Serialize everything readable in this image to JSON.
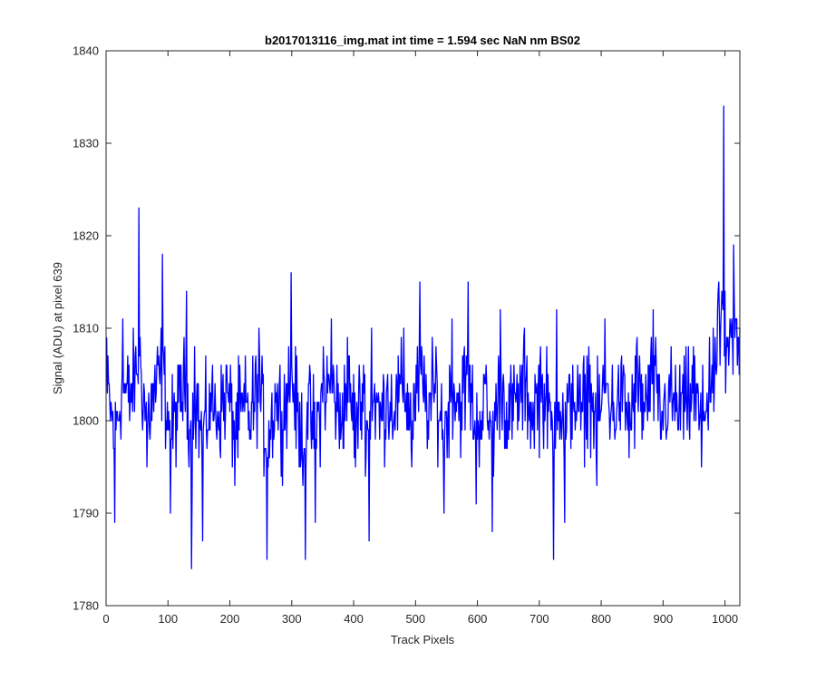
{
  "chart_data": {
    "type": "line",
    "title": "b2017013116_img.mat int time = 1.594 sec  NaN nm BS02",
    "xlabel": "Track Pixels",
    "ylabel": "Signal (ADU) at pixel 639",
    "xlim": [
      0,
      1024
    ],
    "ylim": [
      1780,
      1840
    ],
    "xticks": [
      0,
      100,
      200,
      300,
      400,
      500,
      600,
      700,
      800,
      900,
      1000
    ],
    "yticks": [
      1780,
      1790,
      1800,
      1810,
      1820,
      1830,
      1840
    ],
    "grid": false,
    "line_color": "#0000ff",
    "series": [
      {
        "x": [
          1,
          14,
          27,
          40,
          53,
          66,
          79,
          91,
          104,
          117,
          130,
          138,
          143,
          156,
          169,
          182,
          195,
          208,
          221,
          234,
          247,
          260,
          273,
          286,
          299,
          312,
          322,
          325,
          338,
          351,
          364,
          377,
          390,
          403,
          416,
          425,
          429,
          442,
          455,
          468,
          481,
          494,
          507,
          520,
          533,
          546,
          559,
          572,
          585,
          598,
          611,
          624,
          637,
          650,
          663,
          676,
          689,
          702,
          715,
          723,
          728,
          741,
          754,
          767,
          780,
          793,
          806,
          819,
          832,
          845,
          858,
          871,
          884,
          897,
          910,
          923,
          936,
          949,
          962,
          975,
          988,
          998,
          1001,
          1014,
          1024
        ],
        "y": [
          1809,
          1789,
          1811,
          1804,
          1823,
          1795,
          1806,
          1818,
          1790,
          1802,
          1814,
          1784,
          1808,
          1787,
          1803,
          1799,
          1806,
          1793,
          1801,
          1798,
          1810,
          1785,
          1804,
          1799,
          1816,
          1795,
          1785,
          1802,
          1789,
          1808,
          1811,
          1797,
          1809,
          1795,
          1806,
          1787,
          1810,
          1798,
          1805,
          1802,
          1810,
          1795,
          1815,
          1800,
          1808,
          1790,
          1811,
          1802,
          1815,
          1791,
          1805,
          1788,
          1812,
          1798,
          1803,
          1810,
          1799,
          1808,
          1801,
          1785,
          1812,
          1789,
          1806,
          1799,
          1808,
          1793,
          1811,
          1800,
          1806,
          1796,
          1809,
          1801,
          1812,
          1798,
          1805,
          1801,
          1802,
          1808,
          1795,
          1809,
          1812,
          1834,
          1803,
          1819,
          1810
        ]
      }
    ]
  }
}
